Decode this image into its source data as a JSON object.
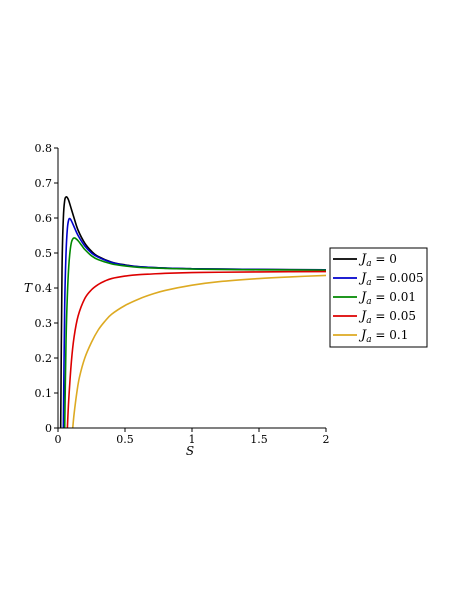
{
  "chart_data": {
    "type": "line",
    "title": "",
    "xlabel": "S",
    "ylabel": "T",
    "xlim": [
      0,
      2
    ],
    "ylim": [
      0,
      0.8
    ],
    "x_ticks": [
      {
        "value": 0,
        "label": "0"
      },
      {
        "value": 0.5,
        "label": "0.5"
      },
      {
        "value": 1,
        "label": "1"
      },
      {
        "value": 1.5,
        "label": "1.5"
      },
      {
        "value": 2,
        "label": "2"
      }
    ],
    "y_ticks": [
      {
        "value": 0,
        "label": "0"
      },
      {
        "value": 0.1,
        "label": "0.1"
      },
      {
        "value": 0.2,
        "label": "0.2"
      },
      {
        "value": 0.3,
        "label": "0.3"
      },
      {
        "value": 0.4,
        "label": "0.4"
      },
      {
        "value": 0.5,
        "label": "0.5"
      },
      {
        "value": 0.6,
        "label": "0.6"
      },
      {
        "value": 0.7,
        "label": "0.7"
      },
      {
        "value": 0.8,
        "label": "0.8"
      }
    ],
    "grid": false,
    "legend_position": "right",
    "legend_symbol": "J",
    "legend_subscript": "a",
    "series": [
      {
        "name": "= 0",
        "color": "#000000",
        "x": [
          0.02,
          0.03,
          0.04,
          0.05,
          0.06,
          0.07,
          0.08,
          0.1,
          0.12,
          0.15,
          0.2,
          0.25,
          0.3,
          0.4,
          0.5,
          0.6,
          0.8,
          1.0,
          1.2,
          1.5,
          2.0
        ],
        "y": [
          0.0,
          0.45,
          0.6,
          0.65,
          0.66,
          0.658,
          0.65,
          0.625,
          0.6,
          0.565,
          0.528,
          0.505,
          0.49,
          0.474,
          0.466,
          0.461,
          0.457,
          0.455,
          0.454,
          0.453,
          0.452
        ]
      },
      {
        "name": "= 0.005",
        "color": "#0000cc",
        "x": [
          0.04,
          0.05,
          0.06,
          0.07,
          0.08,
          0.09,
          0.1,
          0.12,
          0.15,
          0.2,
          0.25,
          0.3,
          0.4,
          0.5,
          0.6,
          0.8,
          1.0,
          1.2,
          1.5,
          2.0
        ],
        "y": [
          0.0,
          0.35,
          0.5,
          0.57,
          0.595,
          0.598,
          0.592,
          0.575,
          0.55,
          0.52,
          0.5,
          0.488,
          0.473,
          0.465,
          0.461,
          0.457,
          0.455,
          0.454,
          0.453,
          0.452
        ]
      },
      {
        "name": "= 0.01",
        "color": "#008800",
        "x": [
          0.05,
          0.06,
          0.07,
          0.08,
          0.09,
          0.1,
          0.11,
          0.12,
          0.13,
          0.15,
          0.18,
          0.2,
          0.25,
          0.3,
          0.4,
          0.5,
          0.6,
          0.8,
          1.0,
          1.2,
          1.5,
          2.0
        ],
        "y": [
          0.0,
          0.25,
          0.38,
          0.46,
          0.505,
          0.53,
          0.54,
          0.543,
          0.542,
          0.535,
          0.52,
          0.51,
          0.492,
          0.481,
          0.469,
          0.463,
          0.459,
          0.456,
          0.454,
          0.453,
          0.452,
          0.451
        ]
      },
      {
        "name": "= 0.05",
        "color": "#dd0000",
        "x": [
          0.07,
          0.08,
          0.1,
          0.12,
          0.15,
          0.2,
          0.25,
          0.3,
          0.35,
          0.4,
          0.5,
          0.6,
          0.7,
          0.8,
          1.0,
          1.2,
          1.5,
          2.0
        ],
        "y": [
          0.0,
          0.08,
          0.19,
          0.26,
          0.32,
          0.37,
          0.395,
          0.41,
          0.42,
          0.427,
          0.434,
          0.438,
          0.44,
          0.442,
          0.444,
          0.445,
          0.446,
          0.447
        ]
      },
      {
        "name": "= 0.1",
        "color": "#ddaa22",
        "x": [
          0.11,
          0.12,
          0.14,
          0.16,
          0.2,
          0.25,
          0.3,
          0.35,
          0.4,
          0.5,
          0.6,
          0.7,
          0.8,
          1.0,
          1.2,
          1.5,
          1.75,
          2.0
        ],
        "y": [
          0.0,
          0.04,
          0.1,
          0.145,
          0.2,
          0.245,
          0.28,
          0.305,
          0.325,
          0.35,
          0.368,
          0.382,
          0.393,
          0.408,
          0.418,
          0.427,
          0.432,
          0.436
        ]
      }
    ]
  }
}
